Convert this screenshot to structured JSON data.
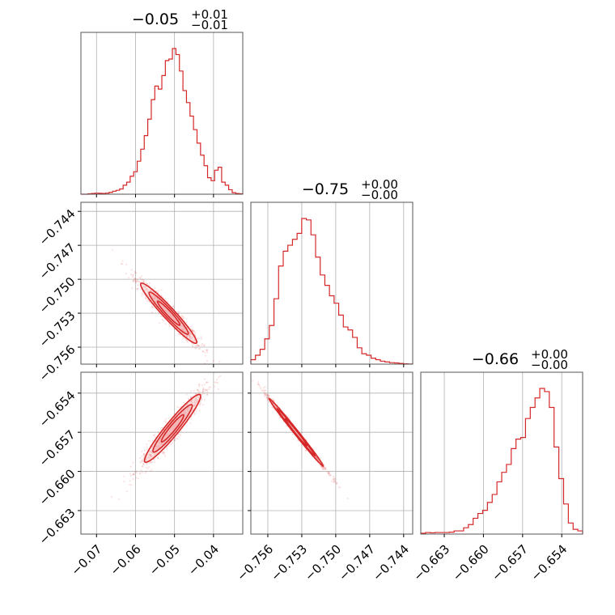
{
  "colors": {
    "main": "#d62728",
    "fill": "#f4b7b8",
    "grid": "#b0b0b0",
    "frame": "#555555"
  },
  "chart_data": {
    "type": "corner",
    "parameters": [
      {
        "title_value": "−0.05",
        "title_plus": "+0.01",
        "title_minus": "−0.01",
        "range": [
          -0.074,
          -0.0325
        ],
        "ticks": [
          -0.07,
          -0.06,
          -0.05,
          -0.04
        ],
        "tick_labels": [
          "−0.07",
          "−0.06",
          "−0.05",
          "−0.04"
        ],
        "hist": [
          0,
          0,
          0.003,
          0.005,
          0.007,
          0.006,
          0.005,
          0.007,
          0.012,
          0.02,
          0.026,
          0.035,
          0.06,
          0.08,
          0.12,
          0.15,
          0.22,
          0.3,
          0.39,
          0.5,
          0.63,
          0.72,
          0.7,
          0.79,
          0.89,
          0.9,
          0.97,
          0.93,
          0.82,
          0.69,
          0.61,
          0.52,
          0.43,
          0.34,
          0.26,
          0.19,
          0.11,
          0.09,
          0.16,
          0.18,
          0.08,
          0.06,
          0.03,
          0.01,
          0.005,
          0.003
        ]
      },
      {
        "title_value": "−0.75",
        "title_plus": "+0.00",
        "title_minus": "−0.00",
        "range": [
          -0.7575,
          -0.7432
        ],
        "ticks": [
          -0.756,
          -0.753,
          -0.75,
          -0.747,
          -0.744
        ],
        "tick_labels": [
          "−0.756",
          "−0.753",
          "−0.750",
          "−0.747",
          "−0.744"
        ],
        "hist": [
          0.03,
          0.06,
          0.1,
          0.17,
          0.26,
          0.44,
          0.66,
          0.76,
          0.8,
          0.84,
          0.88,
          0.98,
          0.97,
          0.87,
          0.72,
          0.6,
          0.53,
          0.46,
          0.41,
          0.33,
          0.25,
          0.23,
          0.18,
          0.11,
          0.07,
          0.06,
          0.04,
          0.03,
          0.02,
          0.015,
          0.01,
          0.008,
          0.005,
          0.002,
          0.001
        ]
      },
      {
        "title_value": "−0.66",
        "title_plus": "+0.00",
        "title_minus": "−0.00",
        "range": [
          -0.6648,
          -0.6524
        ],
        "ticks": [
          -0.663,
          -0.66,
          -0.657,
          -0.654
        ],
        "tick_labels": [
          "−0.663",
          "−0.660",
          "−0.657",
          "−0.654"
        ],
        "hist": [
          0.005,
          0.01,
          0.008,
          0.01,
          0.01,
          0.01,
          0.012,
          0.02,
          0.02,
          0.04,
          0.06,
          0.1,
          0.13,
          0.15,
          0.2,
          0.25,
          0.33,
          0.39,
          0.44,
          0.54,
          0.6,
          0.61,
          0.73,
          0.8,
          0.86,
          0.92,
          0.9,
          0.8,
          0.55,
          0.35,
          0.19,
          0.07,
          0.03,
          0.02
        ]
      }
    ],
    "pairs": [
      {
        "x": 0,
        "y": 1,
        "cx": -0.0515,
        "cy": -0.753,
        "sx": 0.0036,
        "sy": 0.00133,
        "rho": -0.96,
        "outlier_x": -0.071,
        "outlier_y": -0.744
      },
      {
        "x": 0,
        "y": 2,
        "cx": -0.0505,
        "cy": -0.6567,
        "sx": 0.0036,
        "sy": 0.0013,
        "rho": 0.95,
        "outlier_x": -0.071,
        "outlier_y": -0.664
      },
      {
        "x": 1,
        "y": 2,
        "cx": -0.7535,
        "cy": -0.657,
        "sx": 0.0012,
        "sy": 0.0013,
        "rho": -0.995,
        "outlier_x": -0.7565,
        "outlier_y": -0.6528
      }
    ],
    "grid": true
  }
}
